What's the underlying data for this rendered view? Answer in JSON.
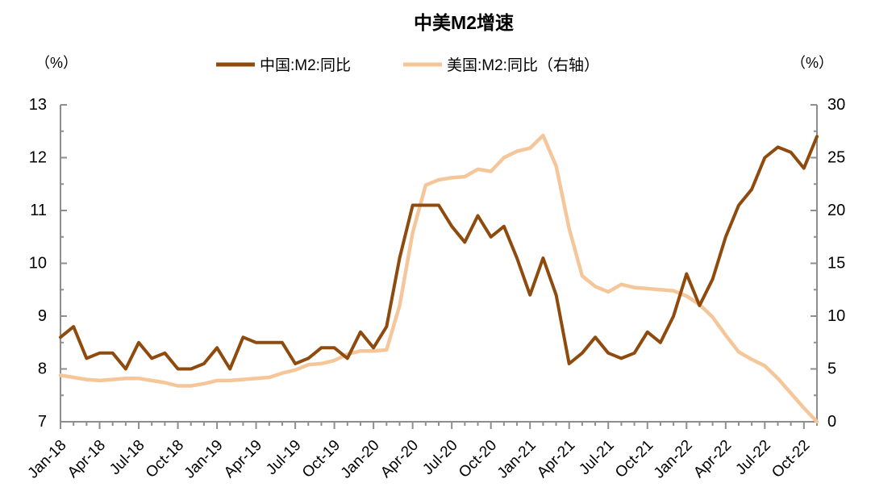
{
  "title": "中美M2增速",
  "left_axis_unit": "（%）",
  "right_axis_unit": "（%）",
  "axis_color": "#8E8E8E",
  "chart_data": {
    "type": "line",
    "title": "中美M2增速",
    "xlabel": "",
    "ylabel_left": "（%）",
    "ylabel_right": "（%）",
    "grid": false,
    "legend_position": "top-center",
    "left_axis": {
      "min": 7,
      "max": 13,
      "major_ticks": [
        7,
        8,
        9,
        10,
        11,
        12,
        13
      ],
      "minor_step": 0.5
    },
    "right_axis": {
      "min": 0,
      "max": 30,
      "major_ticks": [
        0,
        5,
        10,
        15,
        20,
        25,
        30
      ],
      "minor_step": 2.5
    },
    "x_tick_labels": [
      "Jan-18",
      "Apr-18",
      "Jul-18",
      "Oct-18",
      "Jan-19",
      "Apr-19",
      "Jul-19",
      "Oct-19",
      "Jan-20",
      "Apr-20",
      "Jul-20",
      "Oct-20",
      "Jan-21",
      "Apr-21",
      "Jul-21",
      "Oct-21",
      "Jan-22",
      "Apr-22",
      "Jul-22",
      "Oct-22"
    ],
    "x_major_every": 3,
    "x": [
      "Jan-18",
      "Feb-18",
      "Mar-18",
      "Apr-18",
      "May-18",
      "Jun-18",
      "Jul-18",
      "Aug-18",
      "Sep-18",
      "Oct-18",
      "Nov-18",
      "Dec-18",
      "Jan-19",
      "Feb-19",
      "Mar-19",
      "Apr-19",
      "May-19",
      "Jun-19",
      "Jul-19",
      "Aug-19",
      "Sep-19",
      "Oct-19",
      "Nov-19",
      "Dec-19",
      "Jan-20",
      "Feb-20",
      "Mar-20",
      "Apr-20",
      "May-20",
      "Jun-20",
      "Jul-20",
      "Aug-20",
      "Sep-20",
      "Oct-20",
      "Nov-20",
      "Dec-20",
      "Jan-21",
      "Feb-21",
      "Mar-21",
      "Apr-21",
      "May-21",
      "Jun-21",
      "Jul-21",
      "Aug-21",
      "Sep-21",
      "Oct-21",
      "Nov-21",
      "Dec-21",
      "Jan-22",
      "Feb-22",
      "Mar-22",
      "Apr-22",
      "May-22",
      "Jun-22",
      "Jul-22",
      "Aug-22",
      "Sep-22",
      "Oct-22",
      "Nov-22"
    ],
    "series": [
      {
        "name": "中国:M2:同比",
        "axis": "left",
        "color": "#8F4A0D",
        "stroke_width": 4,
        "values": [
          8.6,
          8.8,
          8.2,
          8.3,
          8.3,
          8.0,
          8.5,
          8.2,
          8.3,
          8.0,
          8.0,
          8.1,
          8.4,
          8.0,
          8.6,
          8.5,
          8.5,
          8.5,
          8.1,
          8.2,
          8.4,
          8.4,
          8.2,
          8.7,
          8.4,
          8.8,
          10.1,
          11.1,
          11.1,
          11.1,
          10.7,
          10.4,
          10.9,
          10.5,
          10.7,
          10.1,
          9.4,
          10.1,
          9.4,
          8.1,
          8.3,
          8.6,
          8.3,
          8.2,
          8.3,
          8.7,
          8.5,
          9.0,
          9.8,
          9.2,
          9.7,
          10.5,
          11.1,
          11.4,
          12.0,
          12.2,
          12.1,
          11.8,
          12.4
        ]
      },
      {
        "name": "美国:M2:同比（右轴）",
        "axis": "right",
        "color": "#F6C69B",
        "stroke_width": 4.5,
        "values": [
          4.4,
          4.2,
          4.0,
          3.9,
          4.0,
          4.1,
          4.1,
          3.9,
          3.7,
          3.4,
          3.4,
          3.6,
          3.9,
          3.9,
          4.0,
          4.1,
          4.2,
          4.6,
          4.9,
          5.4,
          5.5,
          5.8,
          6.4,
          6.7,
          6.7,
          6.8,
          11.0,
          17.9,
          22.4,
          22.9,
          23.1,
          23.2,
          23.9,
          23.7,
          25.0,
          25.6,
          25.9,
          27.1,
          24.2,
          18.3,
          13.8,
          12.8,
          12.3,
          13.0,
          12.7,
          12.6,
          12.5,
          12.4,
          11.9,
          11.1,
          9.9,
          8.2,
          6.6,
          5.9,
          5.3,
          4.1,
          2.7,
          1.3,
          0.0
        ]
      }
    ]
  }
}
